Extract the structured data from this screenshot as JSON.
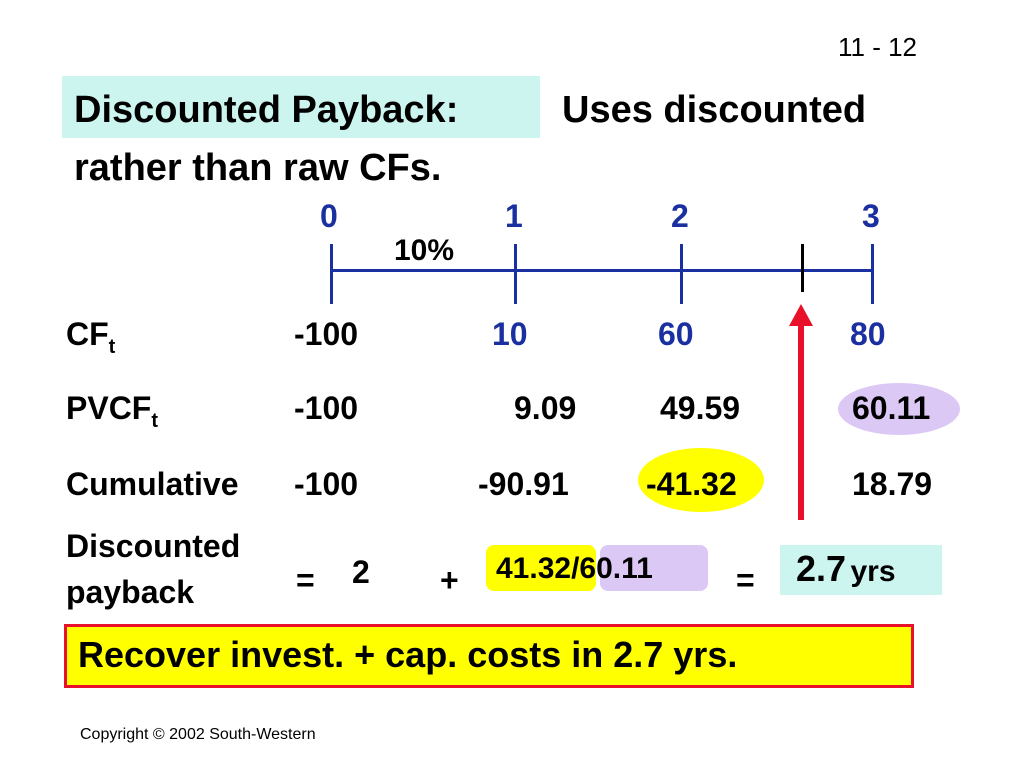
{
  "slide_number": "11 - 12",
  "title": {
    "highlight": "Discounted Payback:",
    "rest_line1": "Uses discounted",
    "line2": "rather than raw CFs."
  },
  "timeline": {
    "periods": [
      "0",
      "1",
      "2",
      "3"
    ],
    "rate": "10%"
  },
  "rows": {
    "cf": {
      "label": "CF",
      "sub": "t",
      "values": [
        "-100",
        "10",
        "60",
        "80"
      ]
    },
    "pvcf": {
      "label": "PVCF",
      "sub": "t",
      "values": [
        "-100",
        "9.09",
        "49.59",
        "60.11"
      ]
    },
    "cumulative": {
      "label": "Cumulative",
      "values": [
        "-100",
        "-90.91",
        "-41.32",
        "18.79"
      ]
    }
  },
  "payback": {
    "label_line1": "Discounted",
    "label_line2": "payback",
    "eq1": "=",
    "years": "2",
    "plus": "+",
    "numerator": "41.32",
    "slash": "/",
    "denominator": "60.11",
    "eq2": "=",
    "result_value": "2.7",
    "result_unit": "yrs"
  },
  "conclusion": "Recover invest. + cap. costs in 2.7 yrs.",
  "copyright": "Copyright © 2002 South-Western",
  "colors": {
    "cyan_highlight": "#ccf5f0",
    "yellow_highlight": "#ffff00",
    "lavender_highlight": "#dcc8f5",
    "timeline_blue": "#1a2fa0",
    "arrow_red": "#e8102a",
    "box_border": "#e8102a"
  }
}
